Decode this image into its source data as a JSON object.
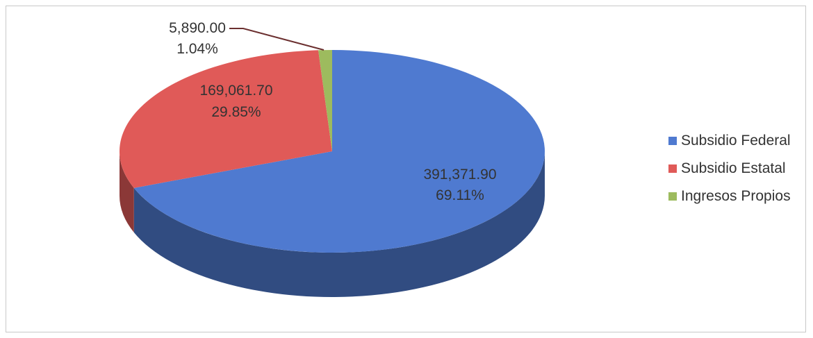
{
  "chart_data": {
    "type": "pie",
    "title": "",
    "three_d": true,
    "legend_position": "right",
    "series": [
      {
        "name": "Subsidio Federal",
        "value": 391371.9,
        "value_label": "391,371.90",
        "percent_label": "69.11%",
        "color": "#4f7ad0"
      },
      {
        "name": "Subsidio Estatal",
        "value": 169061.7,
        "value_label": "169,061.70",
        "percent_label": "29.85%",
        "color": "#e05a58"
      },
      {
        "name": "Ingresos Propios",
        "value": 5890.0,
        "value_label": "5,890.00",
        "percent_label": "1.04%",
        "color": "#9dbb5e"
      }
    ]
  }
}
